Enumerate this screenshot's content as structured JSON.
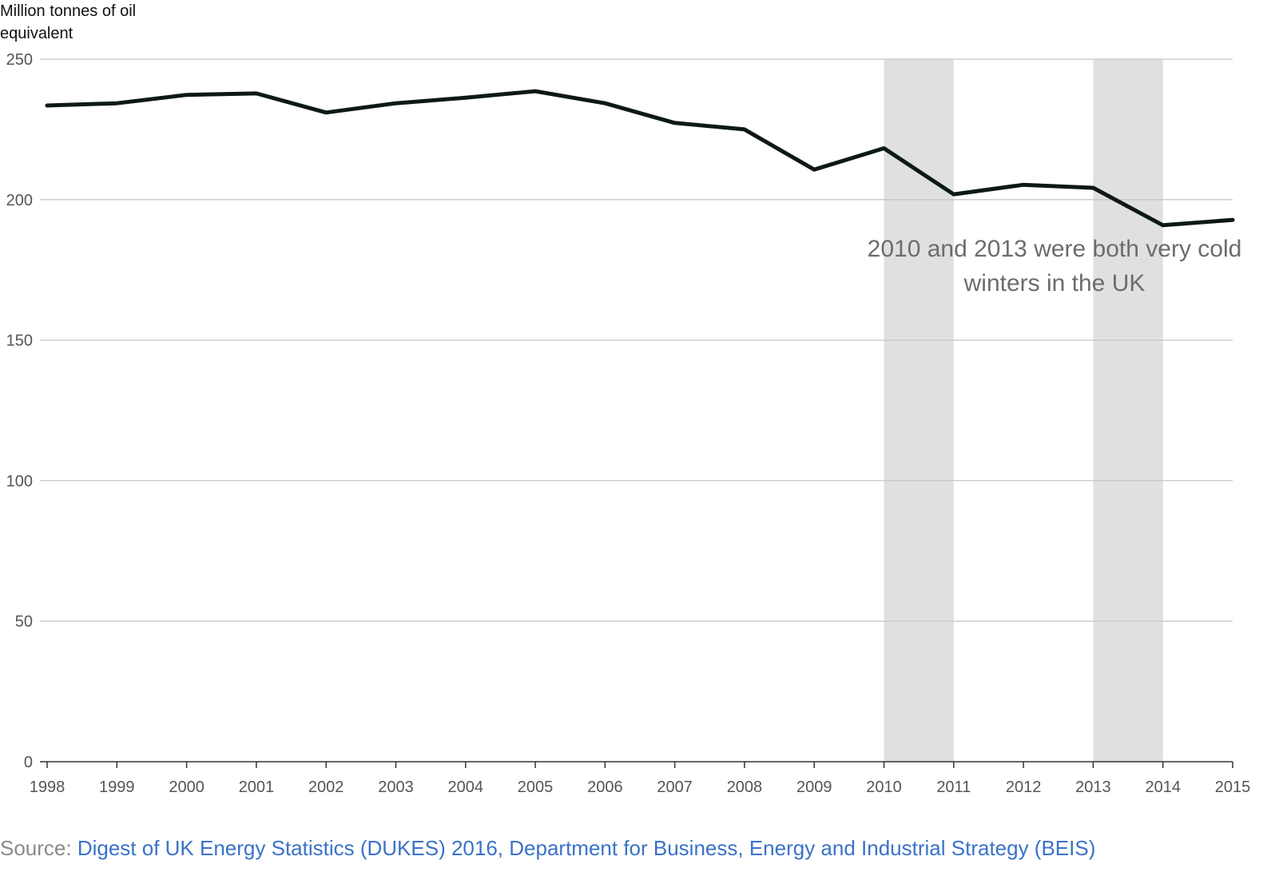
{
  "chart_data": {
    "type": "line",
    "ylabel": "Million tonnes of oil\nequivalent",
    "xlabel": "",
    "x": [
      1998,
      1999,
      2000,
      2001,
      2002,
      2003,
      2004,
      2005,
      2006,
      2007,
      2008,
      2009,
      2010,
      2011,
      2012,
      2013,
      2014,
      2015
    ],
    "series": [
      {
        "values": [
          233.5,
          234.3,
          237.3,
          237.8,
          231.0,
          234.3,
          236.3,
          238.6,
          234.3,
          227.3,
          225.0,
          210.7,
          218.3,
          201.9,
          205.3,
          204.2,
          190.9,
          192.8
        ],
        "color": "#0d1a12"
      }
    ],
    "ylim": [
      0,
      250
    ],
    "yticks": [
      0,
      50,
      100,
      150,
      200,
      250
    ],
    "xlim": [
      1998,
      2015
    ],
    "grid": true,
    "highlight_bands": [
      {
        "start": 2010,
        "end": 2011,
        "color": "#e0e0e0"
      },
      {
        "start": 2013,
        "end": 2014,
        "color": "#e0e0e0"
      }
    ],
    "annotation": "2010 and 2013 were both very cold winters in the UK"
  },
  "source": {
    "prefix": "Source: ",
    "link_text": "Digest of UK Energy Statistics (DUKES) 2016, Department for Business, Energy and Industrial Strategy (BEIS)"
  },
  "colors": {
    "line": "#0d1a12",
    "grid": "#c8c8c8",
    "tick_text": "#555555",
    "band": "#e0e0e0",
    "link": "#3a72c8"
  }
}
